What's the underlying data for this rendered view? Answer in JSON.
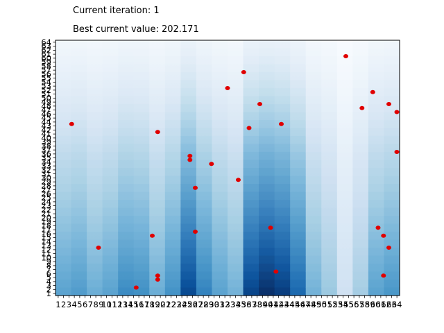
{
  "status": {
    "iteration_label": "Current iteration: 1",
    "best_value_label": "Best current value: 202.171"
  },
  "chart_data": {
    "type": "heatmap",
    "title": "",
    "xlabel": "",
    "ylabel": "",
    "xlim": [
      1,
      64
    ],
    "ylim": [
      1,
      64
    ],
    "x_ticks": [
      1,
      2,
      3,
      4,
      5,
      6,
      7,
      8,
      9,
      10,
      11,
      12,
      13,
      14,
      15,
      16,
      17,
      18,
      19,
      20,
      21,
      22,
      23,
      24,
      25,
      26,
      27,
      28,
      29,
      30,
      31,
      32,
      33,
      34,
      35,
      36,
      37,
      38,
      39,
      40,
      41,
      42,
      43,
      44,
      45,
      46,
      47,
      48,
      49,
      50,
      51,
      52,
      53,
      54,
      55,
      56,
      57,
      58,
      59,
      60,
      61,
      62,
      63,
      64
    ],
    "y_ticks": [
      1,
      2,
      3,
      4,
      5,
      6,
      7,
      8,
      9,
      10,
      11,
      12,
      13,
      14,
      15,
      16,
      17,
      18,
      19,
      20,
      21,
      22,
      23,
      24,
      25,
      26,
      27,
      28,
      29,
      30,
      31,
      32,
      33,
      34,
      35,
      36,
      37,
      38,
      39,
      40,
      41,
      42,
      43,
      44,
      45,
      46,
      47,
      48,
      49,
      50,
      51,
      52,
      53,
      54,
      55,
      56,
      57,
      58,
      59,
      60,
      61,
      62,
      63,
      64
    ],
    "colormap": "Blues",
    "heat_columns": {
      "column_darkness": [
        0.55,
        0.58,
        0.5,
        0.55,
        0.65,
        0.63,
        0.5,
        0.62,
        0.9,
        0.68,
        0.55,
        0.48,
        0.92,
        1.0,
        0.95,
        0.78,
        0.48,
        0.38,
        0.2,
        0.35,
        0.55,
        0.6
      ],
      "vertical_fade_min": 0.22
    },
    "points_color": "#e00000",
    "points": [
      {
        "x": 3.5,
        "y": 43.5
      },
      {
        "x": 8.5,
        "y": 12.5
      },
      {
        "x": 15.5,
        "y": 2.5
      },
      {
        "x": 18.5,
        "y": 15.5
      },
      {
        "x": 19.5,
        "y": 41.5
      },
      {
        "x": 19.5,
        "y": 5.5
      },
      {
        "x": 19.5,
        "y": 4.5
      },
      {
        "x": 25.5,
        "y": 35.5
      },
      {
        "x": 25.5,
        "y": 34.5
      },
      {
        "x": 26.5,
        "y": 27.5
      },
      {
        "x": 26.5,
        "y": 16.5
      },
      {
        "x": 29.5,
        "y": 33.5
      },
      {
        "x": 32.5,
        "y": 52.5
      },
      {
        "x": 34.5,
        "y": 29.5
      },
      {
        "x": 35.5,
        "y": 56.5
      },
      {
        "x": 36.5,
        "y": 42.5
      },
      {
        "x": 38.5,
        "y": 48.5
      },
      {
        "x": 40.5,
        "y": 17.5
      },
      {
        "x": 41.5,
        "y": 6.5
      },
      {
        "x": 42.5,
        "y": 43.5
      },
      {
        "x": 54.5,
        "y": 60.5
      },
      {
        "x": 57.5,
        "y": 47.5
      },
      {
        "x": 59.5,
        "y": 51.5
      },
      {
        "x": 60.5,
        "y": 17.5
      },
      {
        "x": 61.5,
        "y": 15.5
      },
      {
        "x": 61.5,
        "y": 5.5
      },
      {
        "x": 62.5,
        "y": 48.5
      },
      {
        "x": 62.5,
        "y": 12.5
      },
      {
        "x": 64.5,
        "y": 46.5
      },
      {
        "x": 64.5,
        "y": 36.5
      }
    ]
  }
}
